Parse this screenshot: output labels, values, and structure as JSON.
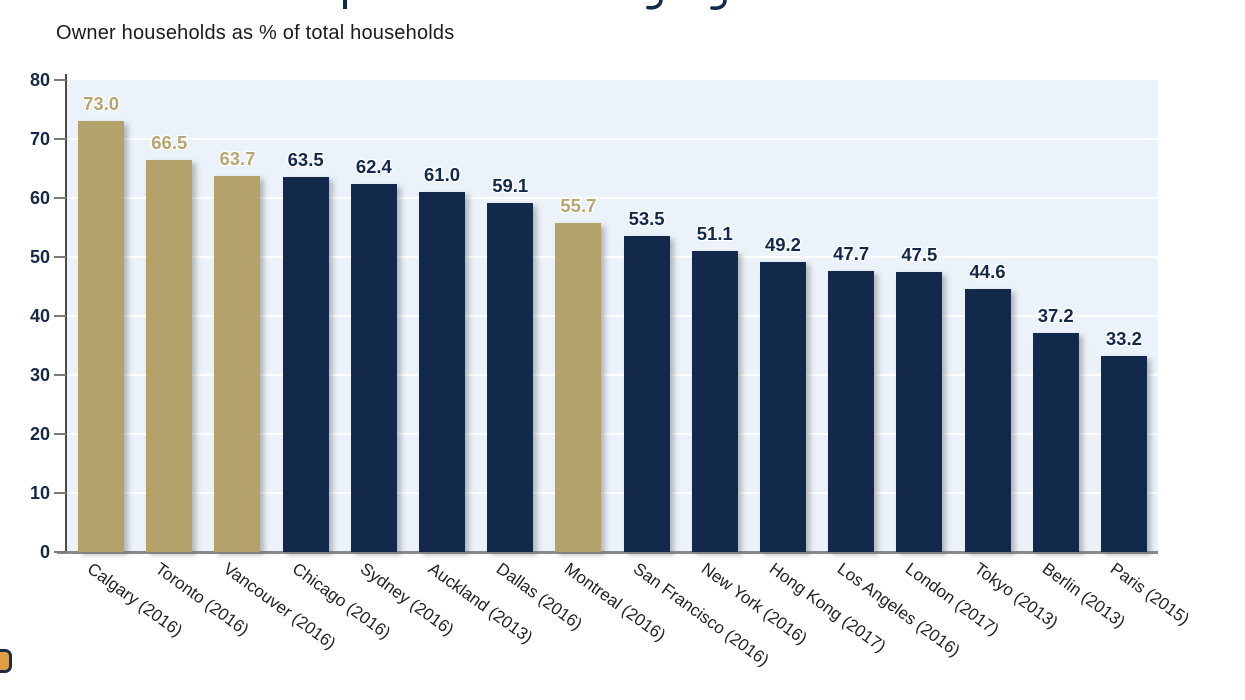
{
  "subtitle": "Owner households as % of total households",
  "clipped_title_note": "Chart title is cropped out of the frame at the top; only three letter descenders are visible",
  "chart_data": {
    "type": "bar",
    "subtitle": "Owner households as % of total households",
    "categories": [
      "Calgary (2016)",
      "Toronto (2016)",
      "Vancouver (2016)",
      "Chicago (2016)",
      "Sydney (2016)",
      "Auckland (2013)",
      "Dallas (2016)",
      "Montreal (2016)",
      "San Francisco (2016)",
      "New York (2016)",
      "Hong Kong (2017)",
      "Los Angeles (2016)",
      "London (2017)",
      "Tokyo (2013)",
      "Berlin (2013)",
      "Paris (2015)"
    ],
    "values": [
      73.0,
      66.5,
      63.7,
      63.5,
      62.4,
      61.0,
      59.1,
      55.7,
      53.5,
      51.1,
      49.2,
      47.7,
      47.5,
      44.6,
      37.2,
      33.2
    ],
    "value_labels": [
      "73.0",
      "66.5",
      "63.7",
      "63.5",
      "62.4",
      "61.0",
      "59.1",
      "55.7",
      "53.5",
      "51.1",
      "49.2",
      "47.7",
      "47.5",
      "44.6",
      "37.2",
      "33.2"
    ],
    "highlight_flags": [
      true,
      true,
      true,
      false,
      false,
      false,
      false,
      true,
      false,
      false,
      false,
      false,
      false,
      false,
      false,
      false
    ],
    "highlighted_categories": [
      "Calgary (2016)",
      "Toronto (2016)",
      "Vancouver (2016)",
      "Montreal (2016)"
    ],
    "xlabel": "",
    "ylabel": "",
    "ylim": [
      0,
      80
    ],
    "yticks": [
      0,
      10,
      20,
      30,
      40,
      50,
      60,
      70,
      80
    ],
    "grid": true,
    "legend": "none",
    "colors": {
      "highlight_bar": "#b3a26a",
      "default_bar": "#13294b",
      "highlight_value_label": "#b7a572",
      "default_value_label": "#13294b",
      "plot_background": "#ebf2fa",
      "gridline": "#ffffff",
      "axis_tick_text": "#152947",
      "category_text": "#222222",
      "title_fragment": "#13294a"
    }
  }
}
